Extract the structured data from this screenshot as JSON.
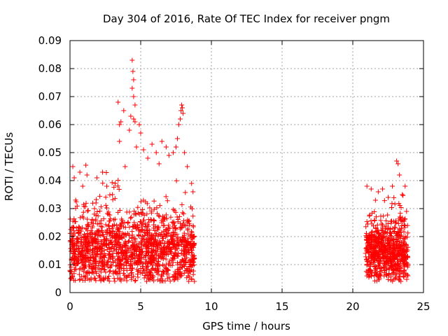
{
  "chart_data": {
    "type": "scatter",
    "title": "Day 304 of 2016, Rate Of TEC Index for receiver pngm",
    "xlabel": "GPS time / hours",
    "ylabel": "ROTI / TECUs",
    "xlim": [
      0,
      25
    ],
    "ylim": [
      0,
      0.09
    ],
    "x_ticks": [
      0,
      5,
      10,
      15,
      20,
      25
    ],
    "x_tick_labels": [
      "0",
      "5",
      "10",
      "15",
      "20",
      "25"
    ],
    "y_ticks": [
      0,
      0.01,
      0.02,
      0.03,
      0.04,
      0.05,
      0.06,
      0.07,
      0.08,
      0.09
    ],
    "y_tick_labels": [
      "0",
      "0.01",
      "0.02",
      "0.03",
      "0.04",
      "0.05",
      "0.06",
      "0.07",
      "0.08",
      "0.09"
    ],
    "grid": true,
    "marker": "+",
    "color": "#ff0000",
    "series": [
      {
        "name": "ROTI",
        "points": [
          [
            0.1,
            0.012
          ],
          [
            0.2,
            0.045
          ],
          [
            0.3,
            0.041
          ],
          [
            0.5,
            0.018
          ],
          [
            0.7,
            0.043
          ],
          [
            0.9,
            0.038
          ],
          [
            1.2,
            0.042
          ],
          [
            1.5,
            0.025
          ],
          [
            1.9,
            0.041
          ],
          [
            2.3,
            0.043
          ],
          [
            2.6,
            0.038
          ],
          [
            3.0,
            0.035
          ],
          [
            3.2,
            0.039
          ],
          [
            3.4,
            0.068
          ],
          [
            3.5,
            0.06
          ],
          [
            3.6,
            0.061
          ],
          [
            3.5,
            0.054
          ],
          [
            3.8,
            0.065
          ],
          [
            3.9,
            0.045
          ],
          [
            4.2,
            0.058
          ],
          [
            4.3,
            0.063
          ],
          [
            4.4,
            0.083
          ],
          [
            4.45,
            0.079
          ],
          [
            4.5,
            0.076
          ],
          [
            4.4,
            0.073
          ],
          [
            4.5,
            0.07
          ],
          [
            4.6,
            0.067
          ],
          [
            4.5,
            0.062
          ],
          [
            4.6,
            0.061
          ],
          [
            4.7,
            0.052
          ],
          [
            4.9,
            0.06
          ],
          [
            5.0,
            0.057
          ],
          [
            5.2,
            0.051
          ],
          [
            5.5,
            0.048
          ],
          [
            5.8,
            0.053
          ],
          [
            6.1,
            0.05
          ],
          [
            6.3,
            0.046
          ],
          [
            6.5,
            0.054
          ],
          [
            6.8,
            0.052
          ],
          [
            7.0,
            0.049
          ],
          [
            7.3,
            0.05
          ],
          [
            7.5,
            0.052
          ],
          [
            7.6,
            0.055
          ],
          [
            7.7,
            0.06
          ],
          [
            7.8,
            0.062
          ],
          [
            7.85,
            0.065
          ],
          [
            7.9,
            0.067
          ],
          [
            7.95,
            0.066
          ],
          [
            8.0,
            0.064
          ],
          [
            8.1,
            0.05
          ],
          [
            8.3,
            0.045
          ],
          [
            8.6,
            0.039
          ],
          [
            8.7,
            0.036
          ],
          [
            21.0,
            0.038
          ],
          [
            21.3,
            0.037
          ],
          [
            21.6,
            0.033
          ],
          [
            21.8,
            0.036
          ],
          [
            22.1,
            0.037
          ],
          [
            22.5,
            0.034
          ],
          [
            22.8,
            0.038
          ],
          [
            23.1,
            0.047
          ],
          [
            23.2,
            0.046
          ],
          [
            23.3,
            0.042
          ],
          [
            23.5,
            0.035
          ],
          [
            23.7,
            0.038
          ],
          [
            23.8,
            0.029
          ],
          [
            0.05,
            0.005
          ],
          [
            1.1,
            0.006
          ],
          [
            2.7,
            0.005
          ],
          [
            4.1,
            0.006
          ],
          [
            5.6,
            0.007
          ],
          [
            6.9,
            0.005
          ],
          [
            8.4,
            0.004
          ],
          [
            8.8,
            0.004
          ],
          [
            21.2,
            0.006
          ],
          [
            22.4,
            0.006
          ],
          [
            23.4,
            0.004
          ],
          [
            23.9,
            0.006
          ]
        ],
        "clusters": [
          {
            "x_range": [
              0.0,
              8.8
            ],
            "y_center": 0.015,
            "y_spread": 0.013,
            "count": 1500
          },
          {
            "x_range": [
              20.9,
              23.9
            ],
            "y_center": 0.014,
            "y_spread": 0.011,
            "count": 700
          }
        ]
      }
    ]
  }
}
